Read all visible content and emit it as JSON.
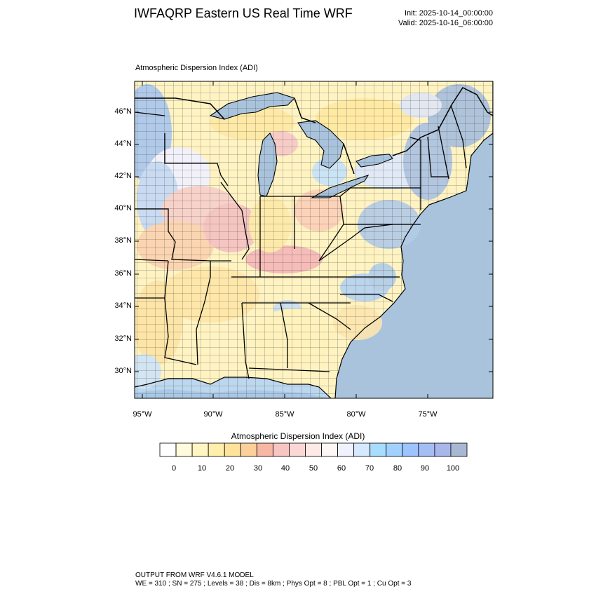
{
  "title": "IWFAQRP Eastern US Real Time WRF",
  "init": "Init: 2025-10-14_00:00:00",
  "valid": "Valid: 2025-10-16_06:00:00",
  "subtitle": "Atmospheric Dispersion Index   (ADI)",
  "map": {
    "lat_labels": [
      "46°N",
      "44°N",
      "42°N",
      "40°N",
      "38°N",
      "36°N",
      "34°N",
      "32°N",
      "30°N"
    ],
    "lon_labels": [
      "95°W",
      "90°W",
      "85°W",
      "80°W",
      "75°W"
    ],
    "ocean_color": "#a9c3dc",
    "land_color": "#fff3c2"
  },
  "colorbar": {
    "title": "Atmospheric Dispersion Index  (ADI)",
    "labels": [
      "0",
      "10",
      "20",
      "30",
      "40",
      "50",
      "60",
      "70",
      "80",
      "90",
      "100"
    ],
    "colors": [
      "#ffffff",
      "#fffbdc",
      "#fff6c3",
      "#ffeeac",
      "#ffe39b",
      "#fbd09a",
      "#f6b7a3",
      "#f7c6c2",
      "#fbd8d6",
      "#fde9e6",
      "#fff6f6",
      "#f0f3ff",
      "#d5eaff",
      "#a9ddff",
      "#a3d1ff",
      "#9dc4ff",
      "#a5bdf5",
      "#a9b6ec",
      "#a9b8d2"
    ]
  },
  "footer": {
    "line1": "OUTPUT FROM WRF V4.6.1 MODEL",
    "line2": "WE = 310 ; SN = 275 ; Levels = 38 ; Dis = 8km ; Phys Opt = 8 ; PBL Opt = 1 ; Cu Opt = 3"
  }
}
